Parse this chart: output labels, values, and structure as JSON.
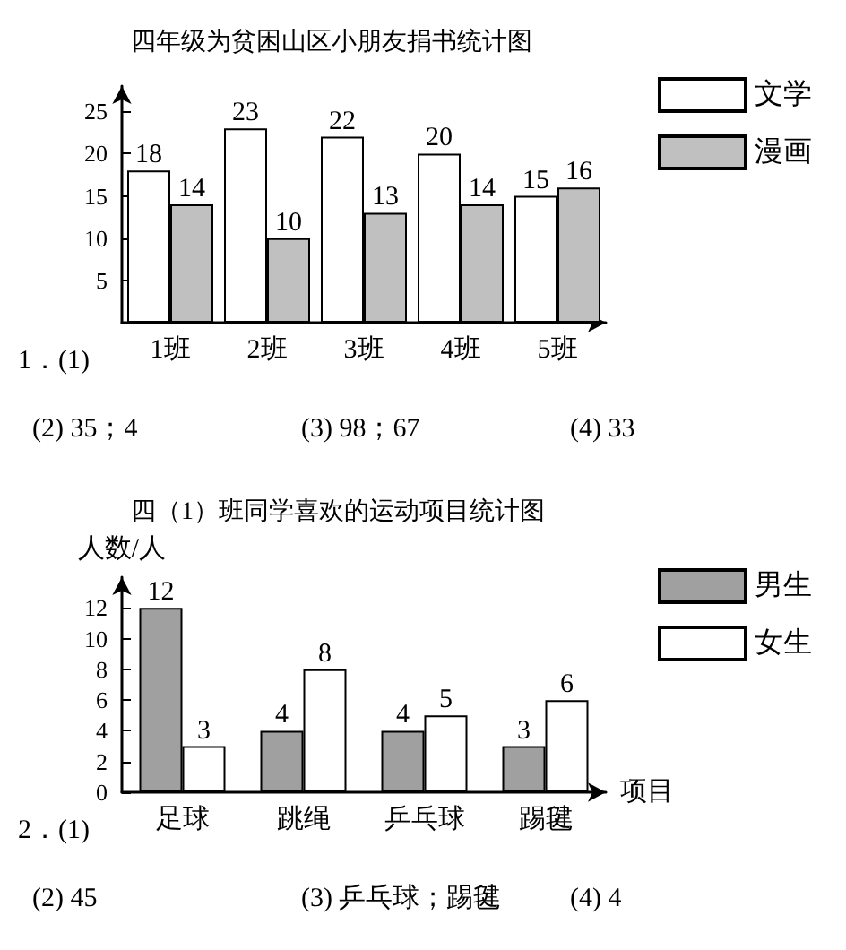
{
  "chart_data": [
    {
      "type": "bar",
      "title": "四年级为贫困山区小朋友捐书统计图",
      "categories": [
        "1班",
        "2班",
        "3班",
        "4班",
        "5班"
      ],
      "series": [
        {
          "name": "文学",
          "color": "#ffffff",
          "values": [
            18,
            23,
            22,
            20,
            15
          ]
        },
        {
          "name": "漫画",
          "color": "#c0c0c0",
          "values": [
            14,
            10,
            13,
            14,
            16
          ]
        }
      ],
      "ylim": [
        0,
        28
      ],
      "yticks": [
        5,
        10,
        15,
        20,
        25
      ],
      "grid": false,
      "legend": "top right",
      "data_labels": true,
      "annotations": [
        "1．(1)",
        "(2) 35；4",
        "(3) 98；67",
        "(4) 33"
      ]
    },
    {
      "type": "bar",
      "title": "四（1）班同学喜欢的运动项目统计图",
      "xlabel": "项目",
      "ylabel": "人数/人",
      "categories": [
        "足球",
        "跳绳",
        "乒乓球",
        "踢毽"
      ],
      "series": [
        {
          "name": "男生",
          "color": "#a0a0a0",
          "values": [
            12,
            4,
            4,
            3
          ]
        },
        {
          "name": "女生",
          "color": "#ffffff",
          "values": [
            3,
            8,
            5,
            6
          ]
        }
      ],
      "ylim": [
        0,
        14
      ],
      "yticks": [
        0,
        2,
        4,
        6,
        8,
        10,
        12
      ],
      "grid": false,
      "legend": "top right",
      "data_labels": true,
      "annotations": [
        "2．(1)",
        "(2) 45",
        "(3) 乒乓球；踢毽",
        "(4) 4"
      ]
    }
  ]
}
